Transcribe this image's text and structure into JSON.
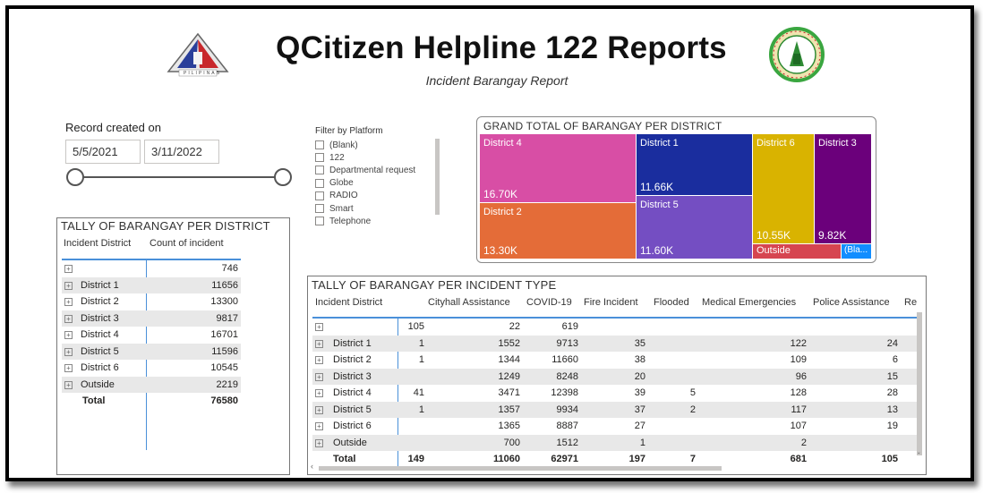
{
  "header": {
    "title": "QCitizen Helpline 122 Reports",
    "subtitle": "Incident Barangay Report",
    "logo_left_text": "PILIPINAS"
  },
  "date_slicer": {
    "label": "Record created on",
    "start": "5/5/2021",
    "end": "3/11/2022"
  },
  "platform_filter": {
    "title": "Filter by Platform",
    "options": [
      "(Blank)",
      "122",
      "Departmental request",
      "Globe",
      "RADIO",
      "Smart",
      "Telephone"
    ]
  },
  "treemap": {
    "title": "GRAND TOTAL OF BARANGAY PER DISTRICT",
    "tiles": [
      {
        "name": "District 4",
        "value_label": "16.70K",
        "color": "#d84ea5"
      },
      {
        "name": "District 2",
        "value_label": "13.30K",
        "color": "#e46c38"
      },
      {
        "name": "District 1",
        "value_label": "11.66K",
        "color": "#1a2d9e"
      },
      {
        "name": "District 5",
        "value_label": "11.60K",
        "color": "#744ec2"
      },
      {
        "name": "District 6",
        "value_label": "10.55K",
        "color": "#d9b300"
      },
      {
        "name": "District 3",
        "value_label": "9.82K",
        "color": "#6b007b"
      },
      {
        "name": "Outside",
        "value_label": "",
        "color": "#d64550"
      },
      {
        "name": "(Bla...",
        "value_label": "",
        "color": "#118dff"
      }
    ]
  },
  "district_table": {
    "title": "TALLY OF BARANGAY PER DISTRICT",
    "headers": [
      "Incident District",
      "Count of incident"
    ],
    "rows": [
      {
        "name": "",
        "count": "746"
      },
      {
        "name": "District 1",
        "count": "11656"
      },
      {
        "name": "District 2",
        "count": "13300"
      },
      {
        "name": "District 3",
        "count": "9817"
      },
      {
        "name": "District 4",
        "count": "16701"
      },
      {
        "name": "District 5",
        "count": "11596"
      },
      {
        "name": "District 6",
        "count": "10545"
      },
      {
        "name": "Outside",
        "count": "2219"
      }
    ],
    "total": {
      "name": "Total",
      "count": "76580"
    }
  },
  "incident_table": {
    "title": "TALLY OF BARANGAY PER INCIDENT TYPE",
    "headers": [
      "Incident District",
      "Cityhall Assistance",
      "COVID-19",
      "Fire Incident",
      "Flooded",
      "Medical Emergencies",
      "Police Assistance",
      "Re"
    ],
    "rows": [
      {
        "name": "",
        "blank": "105",
        "cityhall": "22",
        "covid": "619",
        "fire": "",
        "flooded": "",
        "medical": "",
        "police": ""
      },
      {
        "name": "District 1",
        "blank": "1",
        "cityhall": "1552",
        "covid": "9713",
        "fire": "35",
        "flooded": "",
        "medical": "122",
        "police": "24"
      },
      {
        "name": "District 2",
        "blank": "1",
        "cityhall": "1344",
        "covid": "11660",
        "fire": "38",
        "flooded": "",
        "medical": "109",
        "police": "6"
      },
      {
        "name": "District 3",
        "blank": "",
        "cityhall": "1249",
        "covid": "8248",
        "fire": "20",
        "flooded": "",
        "medical": "96",
        "police": "15"
      },
      {
        "name": "District 4",
        "blank": "41",
        "cityhall": "3471",
        "covid": "12398",
        "fire": "39",
        "flooded": "5",
        "medical": "128",
        "police": "28"
      },
      {
        "name": "District 5",
        "blank": "1",
        "cityhall": "1357",
        "covid": "9934",
        "fire": "37",
        "flooded": "2",
        "medical": "117",
        "police": "13"
      },
      {
        "name": "District 6",
        "blank": "",
        "cityhall": "1365",
        "covid": "8887",
        "fire": "27",
        "flooded": "",
        "medical": "107",
        "police": "19"
      },
      {
        "name": "Outside",
        "blank": "",
        "cityhall": "700",
        "covid": "1512",
        "fire": "1",
        "flooded": "",
        "medical": "2",
        "police": ""
      }
    ],
    "total": {
      "name": "Total",
      "blank": "149",
      "cityhall": "11060",
      "covid": "62971",
      "fire": "197",
      "flooded": "7",
      "medical": "681",
      "police": "105"
    }
  }
}
